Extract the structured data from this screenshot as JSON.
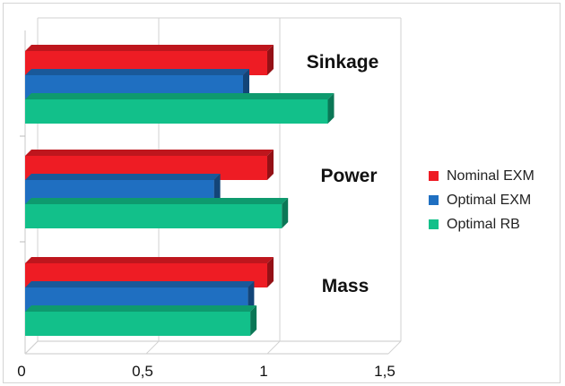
{
  "chart_data": {
    "type": "bar",
    "orientation": "horizontal",
    "categories": [
      "Sinkage",
      "Power",
      "Mass"
    ],
    "series": [
      {
        "name": "Nominal EXM",
        "color": "#ee1c24",
        "values": [
          1.0,
          1.0,
          1.0
        ]
      },
      {
        "name": "Optimal EXM",
        "color": "#1f6fc1",
        "values": [
          0.9,
          0.78,
          0.92
        ]
      },
      {
        "name": "Optimal RB",
        "color": "#12c08a",
        "values": [
          1.25,
          1.06,
          0.93
        ]
      }
    ],
    "xlim": [
      0,
      1.5
    ],
    "xticks": [
      "0",
      "0,5",
      "1",
      "1,5"
    ],
    "grid": true,
    "legend_position": "right"
  }
}
